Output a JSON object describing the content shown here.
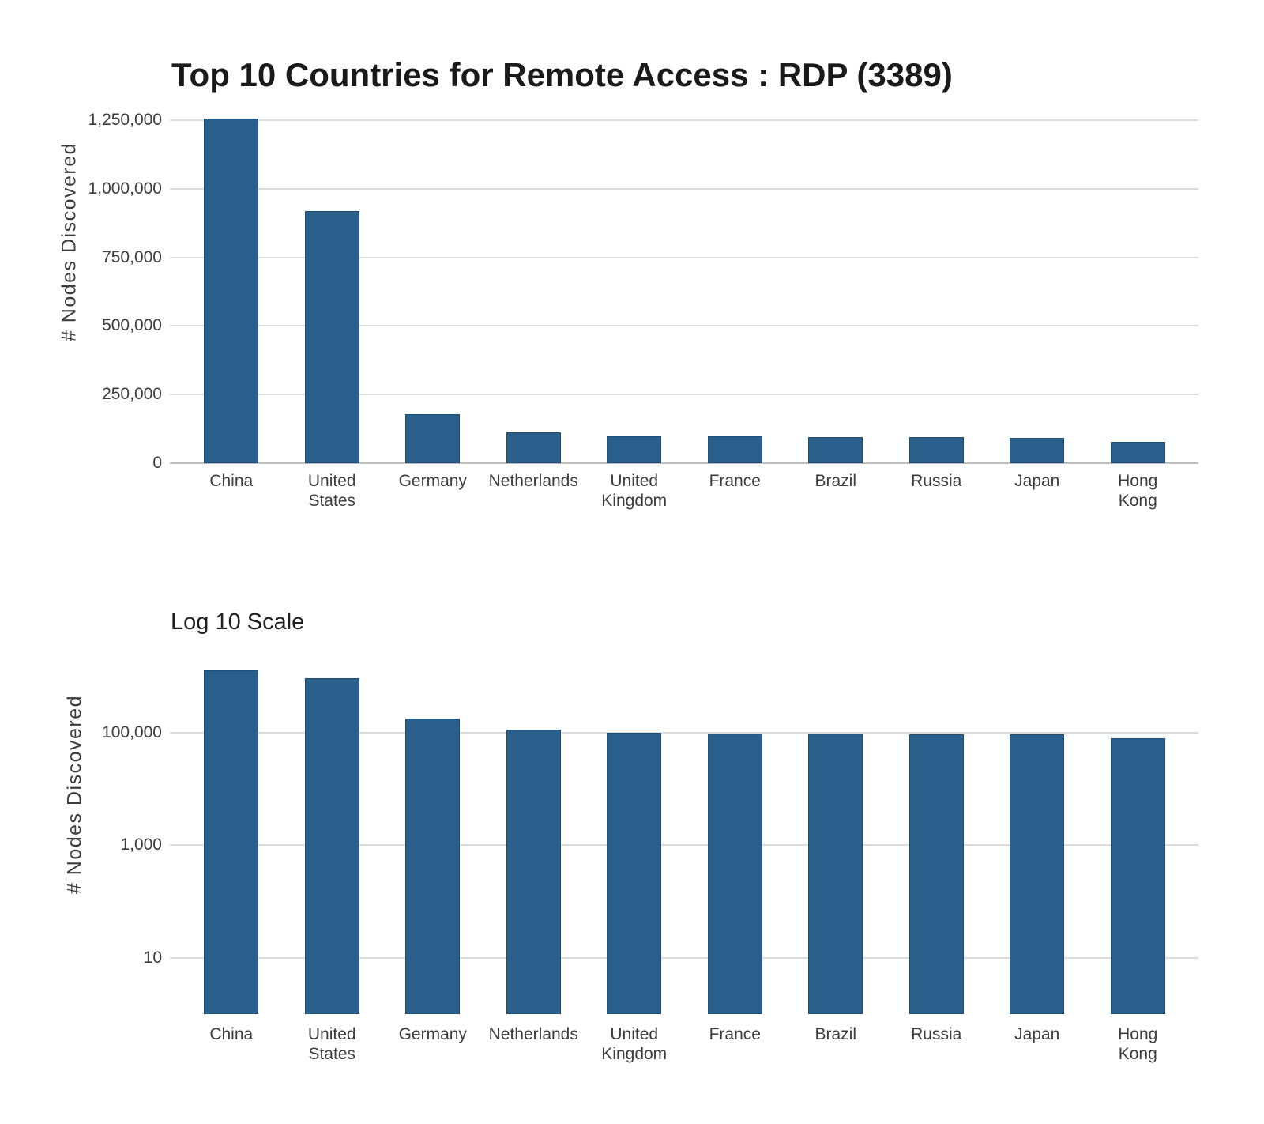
{
  "header": {
    "title": "Top 10 Countries for Remote Access : RDP (3389)"
  },
  "colors": {
    "bar_fill": "#2a5f8b",
    "bar_border": "#1d4e78",
    "gridline": "#dcdcdc",
    "axis_line": "#bebebe",
    "tick_text": "#3d3d3d",
    "title_text": "#1a1a1a",
    "background": "#ffffff"
  },
  "chart_data": [
    {
      "type": "bar",
      "title": "Top 10 Countries for Remote Access : RDP (3389)",
      "scale": "linear",
      "ylabel": "# Nodes Discovered",
      "xlabel": "",
      "categories": [
        "China",
        "United States",
        "Germany",
        "Netherlands",
        "United Kingdom",
        "France",
        "Brazil",
        "Russia",
        "Japan",
        "Hong Kong"
      ],
      "values": [
        1255000,
        920000,
        178000,
        112000,
        99000,
        97000,
        96000,
        94000,
        92000,
        78000
      ],
      "yticks": [
        0,
        250000,
        500000,
        750000,
        1000000,
        1250000
      ],
      "ytick_labels": [
        "0",
        "250,000",
        "500,000",
        "750,000",
        "1,000,000",
        "1,250,000"
      ],
      "ylim": [
        0,
        1250000
      ],
      "grid": true,
      "legend": "none"
    },
    {
      "type": "bar",
      "title": "Log 10 Scale",
      "scale": "log10",
      "ylabel": "# Nodes Discovered",
      "xlabel": "",
      "categories": [
        "China",
        "United States",
        "Germany",
        "Netherlands",
        "United Kingdom",
        "France",
        "Brazil",
        "Russia",
        "Japan",
        "Hong Kong"
      ],
      "values": [
        1255000,
        920000,
        178000,
        112000,
        99000,
        97000,
        96000,
        94000,
        92000,
        78000
      ],
      "yticks": [
        10,
        1000,
        100000
      ],
      "ytick_labels": [
        "10",
        "1,000",
        "100,000"
      ],
      "ylim": [
        1,
        2000000
      ],
      "grid": true,
      "legend": "none"
    }
  ]
}
